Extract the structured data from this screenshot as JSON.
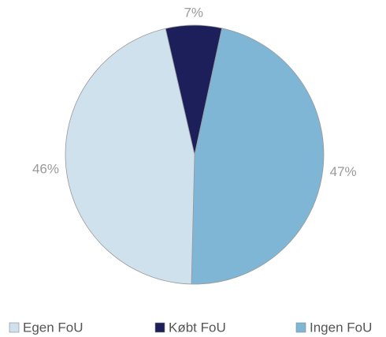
{
  "chart_data": {
    "type": "pie",
    "categories": [
      "Egen FoU",
      "Købt FoU",
      "Ingen FoU"
    ],
    "values": [
      46,
      7,
      47
    ],
    "value_labels": [
      "46%",
      "7%",
      "47%"
    ],
    "colors": [
      "#d0e1ee",
      "#1c1f5a",
      "#7fb6d5"
    ],
    "legend": "bottom"
  }
}
